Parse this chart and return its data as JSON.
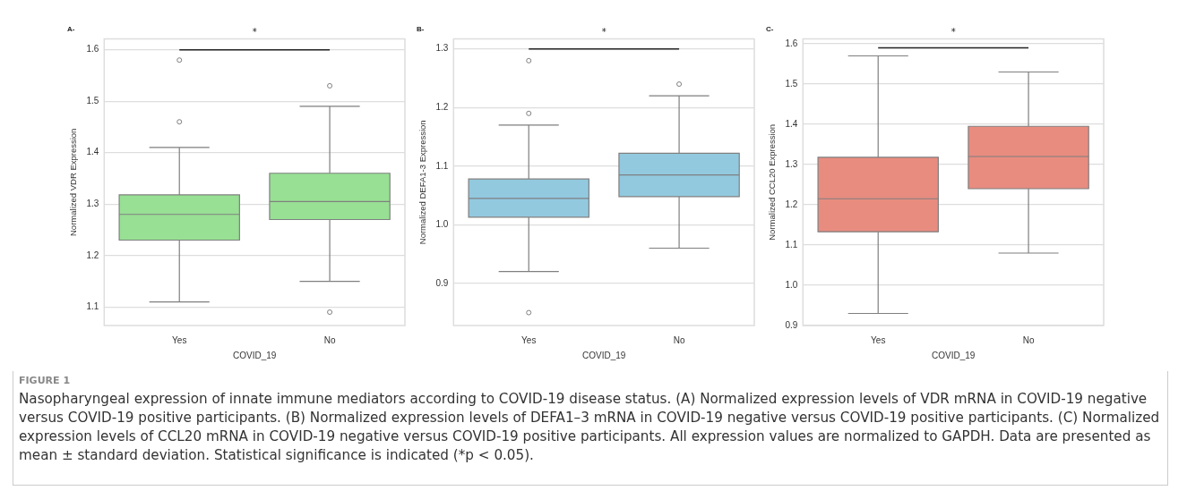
{
  "chart_data": [
    {
      "type": "box",
      "title": "A-",
      "xlabel": "COVID_19",
      "ylabel": "Normalized VDR Expression",
      "categories": [
        "Yes",
        "No"
      ],
      "series": [
        {
          "color": "#98e094",
          "boxes": [
            {
              "low": 1.11,
              "q1": 1.23,
              "median": 1.28,
              "q3": 1.318,
              "high": 1.41,
              "outliers": [
                1.58,
                1.46
              ]
            },
            {
              "low": 1.15,
              "q1": 1.27,
              "median": 1.305,
              "q3": 1.36,
              "high": 1.49,
              "outliers": [
                1.53,
                1.09
              ]
            }
          ]
        }
      ],
      "ylim": [
        1.064,
        1.621
      ],
      "yticks": [
        1.1,
        1.2,
        1.3,
        1.4,
        1.5,
        1.6
      ],
      "grid": "y",
      "ref_lines": [
        {
          "axis": "y",
          "value": 1.6,
          "label": "*",
          "color": "#222222"
        }
      ]
    },
    {
      "type": "box",
      "title": "B-",
      "xlabel": "COVID_19",
      "ylabel": "Normalized DEFA1-3 Expression",
      "categories": [
        "Yes",
        "No"
      ],
      "series": [
        {
          "color": "#92c9df",
          "boxes": [
            {
              "low": 0.92,
              "q1": 1.013,
              "median": 1.045,
              "q3": 1.078,
              "high": 1.17,
              "outliers": [
                1.28,
                1.19,
                0.85
              ]
            },
            {
              "low": 0.96,
              "q1": 1.048,
              "median": 1.085,
              "q3": 1.122,
              "high": 1.22,
              "outliers": [
                1.24
              ]
            }
          ]
        }
      ],
      "ylim": [
        0.828,
        1.317
      ],
      "yticks": [
        0.9,
        {
          "value": 1,
          "label": "1.0"
        },
        1.1,
        1.2,
        1.3
      ],
      "grid": "y",
      "ref_lines": [
        {
          "axis": "y",
          "value": 1.3,
          "label": "*",
          "color": "#222222"
        }
      ]
    },
    {
      "type": "box",
      "title": "C-",
      "xlabel": "COVID_19",
      "ylabel": "Normalized CCL20 Expression",
      "categories": [
        "Yes",
        "No"
      ],
      "series": [
        {
          "color": "#e88c80",
          "boxes": [
            {
              "low": 0.93,
              "q1": 1.133,
              "median": 1.215,
              "q3": 1.318,
              "high": 1.57
            },
            {
              "low": 1.08,
              "q1": 1.24,
              "median": 1.32,
              "q3": 1.395,
              "high": 1.53
            }
          ]
        }
      ],
      "ylim": [
        0.9,
        1.612
      ],
      "yticks": [
        0.9,
        {
          "value": 1,
          "label": "1.0"
        },
        1.1,
        1.2,
        1.3,
        1.4,
        1.5,
        1.6
      ],
      "grid": "y",
      "ref_lines": [
        {
          "axis": "y",
          "value": 1.59,
          "label": "*",
          "color": "#222222"
        }
      ]
    },
    {
      "type": "other",
      "title": "FIGURE 1",
      "annotations": [
        "Nasopharyngeal expression of innate immune mediators according to COVID-19 disease status. (A) Normalized expression levels of VDR mRNA in COVID-19 negative versus COVID-19 positive participants. (B) Normalized expression levels of DEFA1–3 mRNA in COVID-19 negative versus COVID-19 positive participants. (C) Normalized expression levels of CCL20 mRNA in COVID-19 negative versus COVID-19 positive participants. All expression values are normalized to GAPDH. Data are presented as mean ± standard deviation. Statistical significance is indicated (*p < 0.05)."
      ]
    }
  ]
}
